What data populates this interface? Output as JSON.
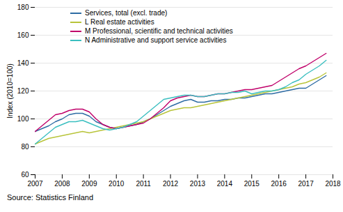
{
  "chart_data": {
    "type": "line",
    "ylabel": "Index (2010=100)",
    "annotations": [
      "Source: Statistics Finland"
    ],
    "x": [
      2007.0,
      2007.25,
      2007.5,
      2007.75,
      2008.0,
      2008.25,
      2008.5,
      2008.75,
      2009.0,
      2009.25,
      2009.5,
      2009.75,
      2010.0,
      2010.25,
      2010.5,
      2010.75,
      2011.0,
      2011.25,
      2011.5,
      2011.75,
      2012.0,
      2012.25,
      2012.5,
      2012.75,
      2013.0,
      2013.25,
      2013.5,
      2013.75,
      2014.0,
      2014.25,
      2014.5,
      2014.75,
      2015.0,
      2015.25,
      2015.5,
      2015.75,
      2016.0,
      2016.25,
      2016.5,
      2016.75,
      2017.0,
      2017.25,
      2017.5,
      2017.75
    ],
    "series": [
      {
        "name": "Services, total (excl. trade)",
        "color": "#2e6ca4",
        "values": [
          91,
          93,
          95,
          98,
          100,
          103,
          104,
          104,
          102,
          98,
          96,
          94,
          93,
          94,
          95,
          96,
          98,
          100,
          103,
          106,
          109,
          111,
          113,
          114,
          112,
          112,
          113,
          113,
          114,
          114,
          115,
          115,
          116,
          117,
          118,
          118,
          119,
          120,
          121,
          122,
          122,
          125,
          128,
          131
        ]
      },
      {
        "name": "L Real estate activities",
        "color": "#b8c43a",
        "values": [
          82,
          84,
          86,
          87,
          88,
          89,
          90,
          91,
          90,
          91,
          92,
          93,
          94,
          95,
          96,
          97,
          98,
          100,
          102,
          104,
          106,
          107,
          108,
          108,
          109,
          110,
          111,
          112,
          113,
          114,
          115,
          116,
          117,
          118,
          119,
          120,
          121,
          122,
          123,
          125,
          126,
          128,
          130,
          133
        ]
      },
      {
        "name": "M Professional, scientific and technical activities",
        "color": "#c0006a",
        "values": [
          91,
          95,
          99,
          103,
          104,
          106,
          107,
          107,
          105,
          100,
          96,
          94,
          93,
          94,
          95,
          96,
          97,
          100,
          104,
          108,
          113,
          115,
          116,
          117,
          116,
          116,
          117,
          118,
          118,
          119,
          120,
          121,
          121,
          122,
          123,
          124,
          127,
          130,
          133,
          136,
          138,
          141,
          144,
          147
        ]
      },
      {
        "name": "N Administrative and support service activities",
        "color": "#3bbfc0",
        "values": [
          82,
          86,
          90,
          94,
          96,
          98,
          98,
          99,
          97,
          95,
          93,
          92,
          93,
          94,
          96,
          98,
          102,
          106,
          110,
          114,
          115,
          116,
          117,
          117,
          116,
          116,
          117,
          118,
          118,
          119,
          119,
          120,
          118,
          119,
          120,
          120,
          121,
          123,
          126,
          128,
          132,
          135,
          138,
          142
        ]
      }
    ],
    "xlim": [
      2007,
      2018
    ],
    "xticks": [
      2007,
      2008,
      2009,
      2010,
      2011,
      2012,
      2013,
      2014,
      2015,
      2016,
      2017,
      2018
    ],
    "ylim": [
      60,
      180
    ],
    "yticks": [
      60,
      80,
      100,
      120,
      140,
      160,
      180
    ],
    "grid": "y",
    "legend": "upper left"
  }
}
